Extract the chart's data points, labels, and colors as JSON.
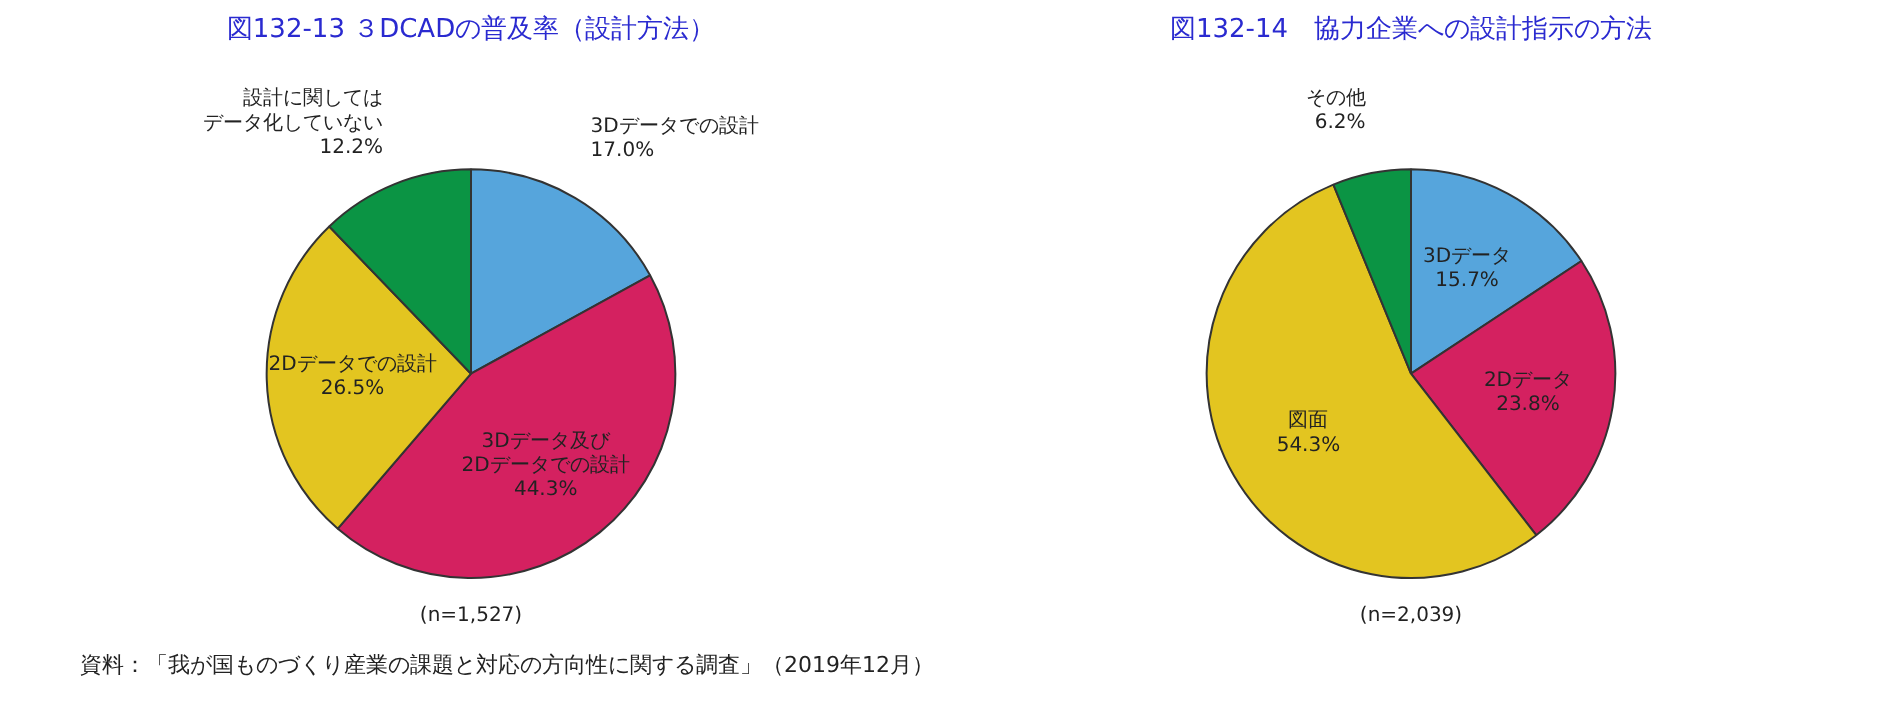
{
  "chart_data": [
    {
      "type": "pie",
      "title": "図132-13 ３DCADの普及率（設計方法）",
      "categories": [
        "3Dデータでの設計",
        "3Dデータ及び2Dデータでの設計",
        "2Dデータでの設計",
        "設計に関してはデータ化していない"
      ],
      "values": [
        17.0,
        44.3,
        26.5,
        12.2
      ],
      "colors": [
        "#56a5dc",
        "#d42160",
        "#e3c520",
        "#0b9444"
      ],
      "value_labels": [
        "17.0%",
        "44.3%",
        "26.5%",
        "12.2%"
      ],
      "annotations": [
        "(n=1,527)",
        "資料：「我が国ものづくり産業の課題と対応の方向性に関する調査」（2019年12月）"
      ]
    },
    {
      "type": "pie",
      "title": "図132-14　協力企業への設計指示の方法",
      "categories": [
        "3Dデータ",
        "2Dデータ",
        "図面",
        "その他"
      ],
      "values": [
        15.7,
        23.8,
        54.3,
        6.2
      ],
      "colors": [
        "#56a5dc",
        "#d42160",
        "#e3c520",
        "#0b9444"
      ],
      "value_labels": [
        "15.7%",
        "23.8%",
        "54.3%",
        "6.2%"
      ],
      "annotations": [
        "(n=2,039)"
      ]
    }
  ]
}
